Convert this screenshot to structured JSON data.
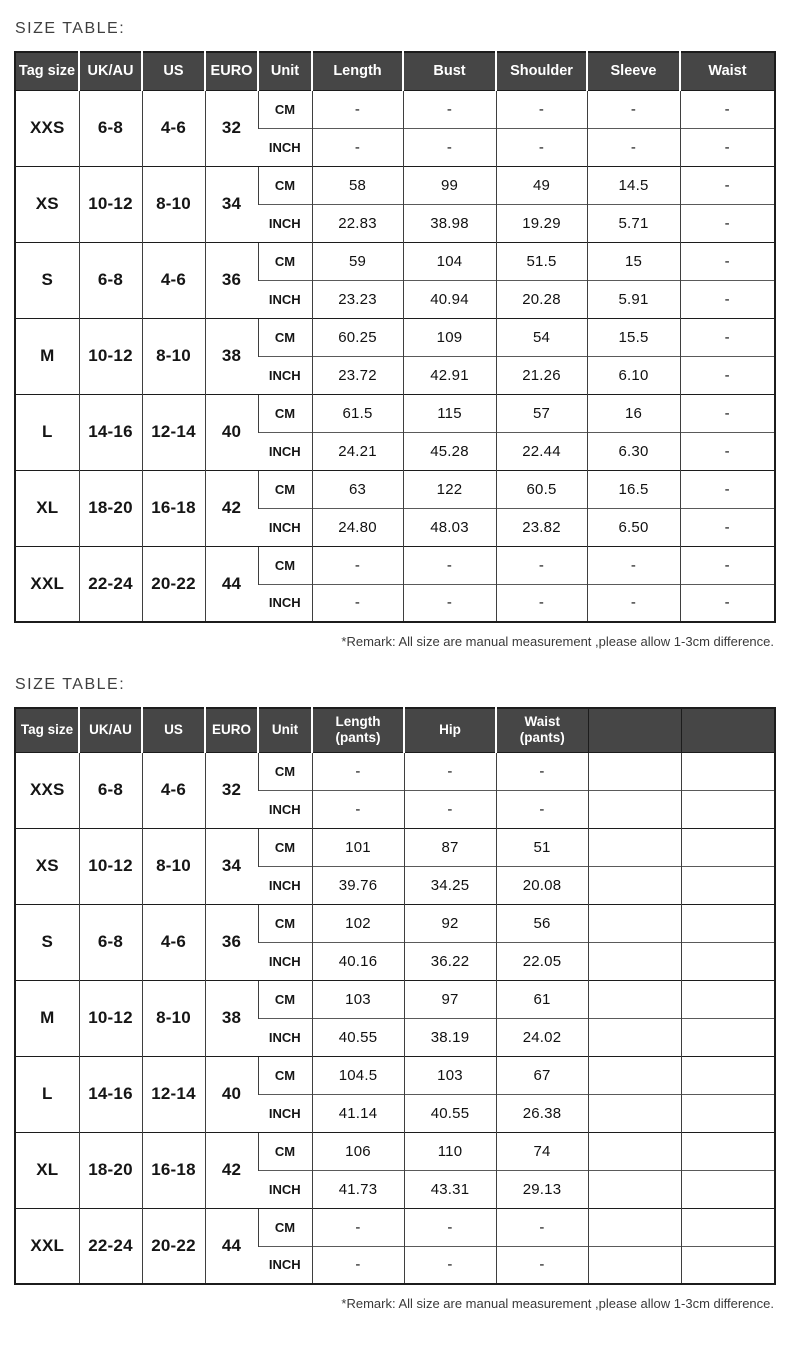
{
  "colors": {
    "page_bg": "#ffffff",
    "header_bg": "#464646",
    "header_text": "#ffffff",
    "border_dark": "#1c1c1c",
    "heading_text": "#3f3f3f",
    "body_text": "#151515"
  },
  "section1": {
    "heading": "SIZE TABLE:",
    "remark": "*Remark: All size are manual measurement ,please allow 1-3cm difference.",
    "table": {
      "columns": [
        {
          "t": "Tag size"
        },
        {
          "t": "UK/AU"
        },
        {
          "t": "US"
        },
        {
          "t": "EURO"
        },
        {
          "t": "Unit"
        },
        {
          "t": "Length"
        },
        {
          "t": "Bust"
        },
        {
          "t": "Shoulder"
        },
        {
          "t": "Sleeve"
        },
        {
          "t": "Waist"
        }
      ],
      "unit_labels": [
        "CM",
        "INCH"
      ],
      "rows": [
        {
          "tag": "XXS",
          "uk_au": "6-8",
          "us": "4-6",
          "euro": "32",
          "cm": [
            "-",
            "-",
            "-",
            "-",
            "-"
          ],
          "inch": [
            "-",
            "-",
            "-",
            "-",
            "-"
          ]
        },
        {
          "tag": "XS",
          "uk_au": "10-12",
          "us": "8-10",
          "euro": "34",
          "cm": [
            "58",
            "99",
            "49",
            "14.5",
            "-"
          ],
          "inch": [
            "22.83",
            "38.98",
            "19.29",
            "5.71",
            "-"
          ]
        },
        {
          "tag": "S",
          "uk_au": "6-8",
          "us": "4-6",
          "euro": "36",
          "cm": [
            "59",
            "104",
            "51.5",
            "15",
            "-"
          ],
          "inch": [
            "23.23",
            "40.94",
            "20.28",
            "5.91",
            "-"
          ]
        },
        {
          "tag": "M",
          "uk_au": "10-12",
          "us": "8-10",
          "euro": "38",
          "cm": [
            "60.25",
            "109",
            "54",
            "15.5",
            "-"
          ],
          "inch": [
            "23.72",
            "42.91",
            "21.26",
            "6.10",
            "-"
          ]
        },
        {
          "tag": "L",
          "uk_au": "14-16",
          "us": "12-14",
          "euro": "40",
          "cm": [
            "61.5",
            "115",
            "57",
            "16",
            "-"
          ],
          "inch": [
            "24.21",
            "45.28",
            "22.44",
            "6.30",
            "-"
          ]
        },
        {
          "tag": "XL",
          "uk_au": "18-20",
          "us": "16-18",
          "euro": "42",
          "cm": [
            "63",
            "122",
            "60.5",
            "16.5",
            "-"
          ],
          "inch": [
            "24.80",
            "48.03",
            "23.82",
            "6.50",
            "-"
          ]
        },
        {
          "tag": "XXL",
          "uk_au": "22-24",
          "us": "20-22",
          "euro": "44",
          "cm": [
            "-",
            "-",
            "-",
            "-",
            "-"
          ],
          "inch": [
            "-",
            "-",
            "-",
            "-",
            "-"
          ]
        }
      ]
    }
  },
  "section2": {
    "heading": "SIZE TABLE:",
    "remark": "*Remark: All size are manual measurement ,please allow 1-3cm difference.",
    "table": {
      "columns": [
        {
          "t": "Tag size"
        },
        {
          "t": "UK/AU"
        },
        {
          "t": "US"
        },
        {
          "t": "EURO"
        },
        {
          "t": "Unit"
        },
        {
          "t": "Length",
          "s": "(pants)"
        },
        {
          "t": "Hip"
        },
        {
          "t": "Waist",
          "s": "(pants)"
        },
        {
          "t": ""
        },
        {
          "t": ""
        }
      ],
      "unit_labels": [
        "CM",
        "INCH"
      ],
      "rows": [
        {
          "tag": "XXS",
          "uk_au": "6-8",
          "us": "4-6",
          "euro": "32",
          "cm": [
            "-",
            "-",
            "-",
            "",
            ""
          ],
          "inch": [
            "-",
            "-",
            "-",
            "",
            ""
          ]
        },
        {
          "tag": "XS",
          "uk_au": "10-12",
          "us": "8-10",
          "euro": "34",
          "cm": [
            "101",
            "87",
            "51",
            "",
            ""
          ],
          "inch": [
            "39.76",
            "34.25",
            "20.08",
            "",
            ""
          ]
        },
        {
          "tag": "S",
          "uk_au": "6-8",
          "us": "4-6",
          "euro": "36",
          "cm": [
            "102",
            "92",
            "56",
            "",
            ""
          ],
          "inch": [
            "40.16",
            "36.22",
            "22.05",
            "",
            ""
          ]
        },
        {
          "tag": "M",
          "uk_au": "10-12",
          "us": "8-10",
          "euro": "38",
          "cm": [
            "103",
            "97",
            "61",
            "",
            ""
          ],
          "inch": [
            "40.55",
            "38.19",
            "24.02",
            "",
            ""
          ]
        },
        {
          "tag": "L",
          "uk_au": "14-16",
          "us": "12-14",
          "euro": "40",
          "cm": [
            "104.5",
            "103",
            "67",
            "",
            ""
          ],
          "inch": [
            "41.14",
            "40.55",
            "26.38",
            "",
            ""
          ]
        },
        {
          "tag": "XL",
          "uk_au": "18-20",
          "us": "16-18",
          "euro": "42",
          "cm": [
            "106",
            "110",
            "74",
            "",
            ""
          ],
          "inch": [
            "41.73",
            "43.31",
            "29.13",
            "",
            ""
          ]
        },
        {
          "tag": "XXL",
          "uk_au": "22-24",
          "us": "20-22",
          "euro": "44",
          "cm": [
            "-",
            "-",
            "-",
            "",
            ""
          ],
          "inch": [
            "-",
            "-",
            "-",
            "",
            ""
          ]
        }
      ]
    }
  }
}
